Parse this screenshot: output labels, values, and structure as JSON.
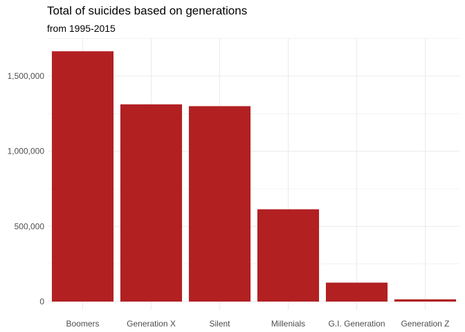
{
  "chart_data": {
    "type": "bar",
    "title": "Total of suicides based on generations",
    "subtitle": "from 1995-2015",
    "xlabel": "",
    "ylabel": "",
    "categories": [
      "Boomers",
      "Generation X",
      "Silent",
      "Millenials",
      "G.I. Generation",
      "Generation Z"
    ],
    "values": [
      1665000,
      1312000,
      1300000,
      614000,
      126000,
      15000
    ],
    "ylim": [
      0,
      1740000
    ],
    "yticks": [
      0,
      500000,
      1000000,
      1500000
    ],
    "ytick_labels": [
      "0",
      "500,000",
      "1,000,000",
      "1,500,000"
    ],
    "grid": true,
    "legend": "none",
    "colors": {
      "bar": "#B22022",
      "grid": "#EBEBEB"
    }
  }
}
